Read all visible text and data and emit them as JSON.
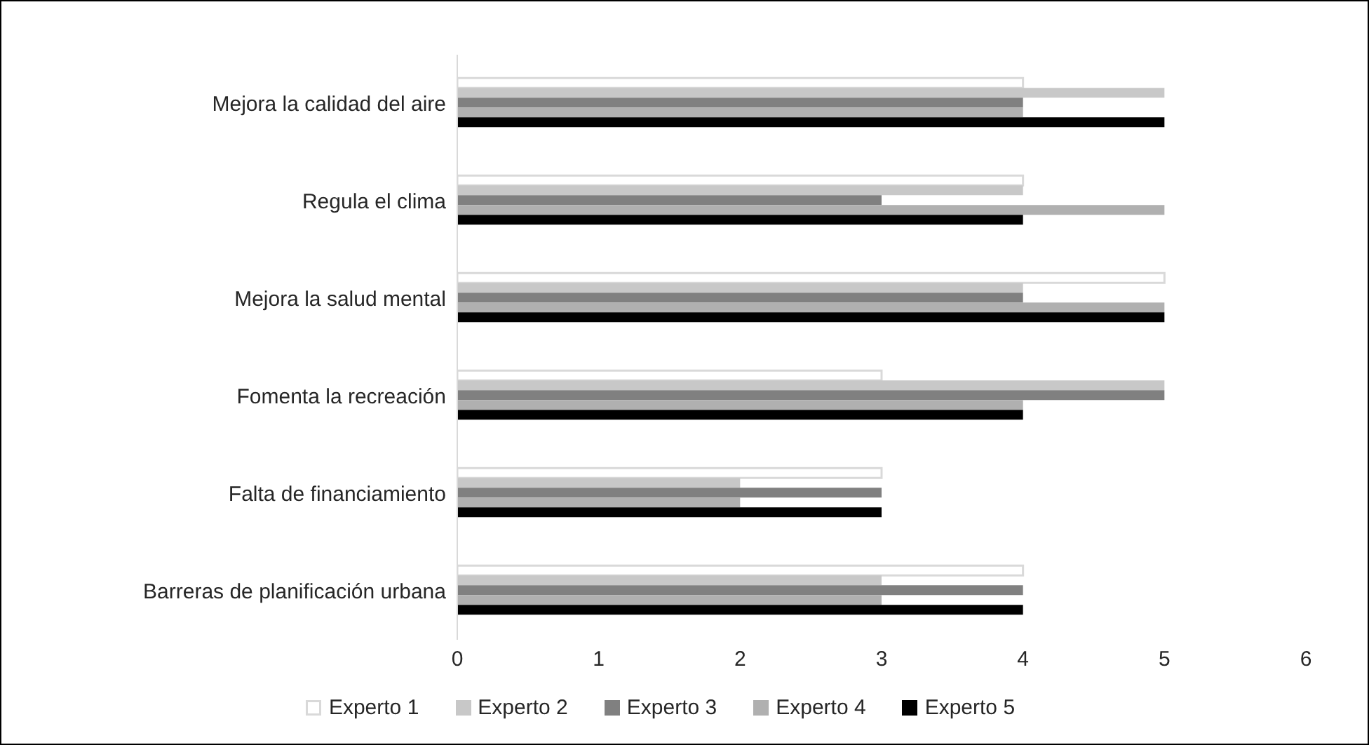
{
  "chart_data": {
    "type": "bar",
    "orientation": "horizontal",
    "categories": [
      "Mejora la calidad del aire",
      "Regula el clima",
      "Mejora la salud mental",
      "Fomenta la recreación",
      "Falta de financiamiento",
      "Barreras de planificación urbana"
    ],
    "series": [
      {
        "name": "Experto 1",
        "color": "#ffffff",
        "values": [
          4,
          4,
          5,
          3,
          3,
          4
        ]
      },
      {
        "name": "Experto 2",
        "color": "#c8c8c8",
        "values": [
          5,
          4,
          4,
          5,
          2,
          3
        ]
      },
      {
        "name": "Experto 3",
        "color": "#808080",
        "values": [
          4,
          3,
          4,
          5,
          3,
          4
        ]
      },
      {
        "name": "Experto 4",
        "color": "#b0b0b0",
        "values": [
          4,
          5,
          5,
          4,
          2,
          3
        ]
      },
      {
        "name": "Experto 5",
        "color": "#000000",
        "values": [
          5,
          4,
          5,
          4,
          3,
          4
        ]
      }
    ],
    "xlim": [
      0,
      6
    ],
    "xticks": [
      0,
      1,
      2,
      3,
      4,
      5,
      6
    ],
    "legend": "bottom"
  }
}
